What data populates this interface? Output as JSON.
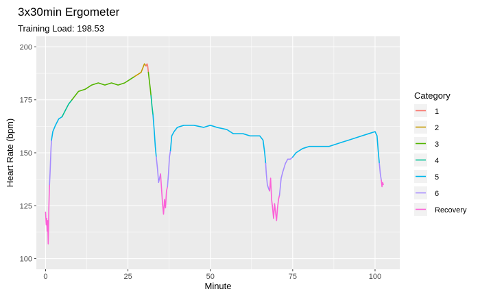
{
  "chart_data": {
    "type": "line",
    "title": "3x30min Ergometer",
    "subtitle": "Training Load: 198.53",
    "xlabel": "Minute",
    "ylabel": "Heart Rate (bpm)",
    "xlim": [
      -2.8,
      107.5
    ],
    "ylim": [
      95,
      205
    ],
    "x_ticks": [
      0,
      25,
      50,
      75,
      100
    ],
    "y_ticks": [
      100,
      125,
      150,
      175,
      200
    ],
    "x_minor": [
      12.5,
      37.5,
      62.5,
      87.5
    ],
    "y_minor": [
      112.5,
      137.5,
      162.5,
      187.5
    ],
    "grid": true,
    "legend": {
      "title": "Category",
      "position": "right",
      "entries": [
        {
          "name": "1",
          "color": "#F8766D"
        },
        {
          "name": "2",
          "color": "#C49A00"
        },
        {
          "name": "3",
          "color": "#53B400"
        },
        {
          "name": "4",
          "color": "#00C094"
        },
        {
          "name": "5",
          "color": "#00B6EB"
        },
        {
          "name": "6",
          "color": "#A58AFF"
        },
        {
          "name": "Recovery",
          "color": "#FB61D7"
        }
      ]
    },
    "series": [
      {
        "name": "Recovery",
        "color": "#FB61D7",
        "points": [
          [
            0,
            122
          ],
          [
            0.2,
            116
          ],
          [
            0.35,
            119
          ],
          [
            0.5,
            113
          ],
          [
            0.65,
            118
          ],
          [
            0.8,
            107
          ],
          [
            0.9,
            114
          ],
          [
            1.0,
            124
          ],
          [
            1.1,
            130
          ],
          [
            1.2,
            135
          ]
        ]
      },
      {
        "name": "6",
        "color": "#A58AFF",
        "points": [
          [
            1.2,
            135
          ],
          [
            1.35,
            140
          ],
          [
            1.5,
            146
          ],
          [
            1.65,
            152
          ],
          [
            1.8,
            156
          ]
        ]
      },
      {
        "name": "5",
        "color": "#00B6EB",
        "points": [
          [
            1.8,
            156
          ],
          [
            2.2,
            160
          ],
          [
            3,
            163
          ],
          [
            4,
            166
          ],
          [
            5,
            167
          ]
        ]
      },
      {
        "name": "4",
        "color": "#00C094",
        "points": [
          [
            5,
            167
          ],
          [
            6,
            170
          ],
          [
            7,
            173
          ],
          [
            8,
            175
          ]
        ]
      },
      {
        "name": "3",
        "color": "#53B400",
        "points": [
          [
            8,
            175
          ],
          [
            9,
            177
          ],
          [
            10,
            179
          ],
          [
            12,
            180
          ],
          [
            14,
            182
          ],
          [
            16,
            183
          ],
          [
            18,
            182
          ],
          [
            20,
            183
          ],
          [
            22,
            182
          ],
          [
            24,
            183
          ],
          [
            25,
            184
          ],
          [
            27,
            186
          ]
        ]
      },
      {
        "name": "2",
        "color": "#C49A00",
        "points": [
          [
            27,
            186
          ],
          [
            28,
            187
          ],
          [
            29,
            188
          ],
          [
            29.5,
            190
          ],
          [
            30,
            192
          ],
          [
            30.5,
            191
          ]
        ]
      },
      {
        "name": "1",
        "color": "#F8766D",
        "points": [
          [
            30.5,
            191
          ],
          [
            30.8,
            192
          ],
          [
            31,
            191
          ],
          [
            31.2,
            188
          ]
        ]
      },
      {
        "name": "3",
        "color": "#53B400",
        "points": [
          [
            31.2,
            188
          ],
          [
            31.5,
            184
          ],
          [
            31.8,
            180
          ],
          [
            32,
            177
          ]
        ]
      },
      {
        "name": "4",
        "color": "#00C094",
        "points": [
          [
            32,
            177
          ],
          [
            32.3,
            172
          ],
          [
            32.6,
            168
          ]
        ]
      },
      {
        "name": "5",
        "color": "#00B6EB",
        "points": [
          [
            32.6,
            168
          ],
          [
            33,
            160
          ],
          [
            33.3,
            153
          ],
          [
            33.6,
            148
          ]
        ]
      },
      {
        "name": "6",
        "color": "#A58AFF",
        "points": [
          [
            33.6,
            148
          ],
          [
            34,
            142
          ],
          [
            34.3,
            136
          ],
          [
            34.6,
            138
          ],
          [
            34.9,
            140
          ]
        ]
      },
      {
        "name": "Recovery",
        "color": "#FB61D7",
        "points": [
          [
            34.9,
            140
          ],
          [
            35.2,
            133
          ],
          [
            35.5,
            126
          ],
          [
            35.8,
            121
          ],
          [
            36.1,
            128
          ],
          [
            36.4,
            124
          ],
          [
            36.7,
            132
          ],
          [
            37,
            134
          ]
        ]
      },
      {
        "name": "6",
        "color": "#A58AFF",
        "points": [
          [
            37,
            134
          ],
          [
            37.3,
            140
          ],
          [
            37.6,
            148
          ],
          [
            37.9,
            151
          ]
        ]
      },
      {
        "name": "5",
        "color": "#00B6EB",
        "points": [
          [
            37.9,
            151
          ],
          [
            38.3,
            158
          ],
          [
            39,
            160
          ],
          [
            40,
            162
          ],
          [
            42,
            163
          ],
          [
            45,
            163
          ],
          [
            48,
            162
          ],
          [
            50,
            163
          ],
          [
            52,
            162
          ],
          [
            55,
            161
          ],
          [
            57,
            159
          ],
          [
            60,
            159
          ],
          [
            62,
            158
          ],
          [
            64,
            158
          ],
          [
            65,
            158
          ],
          [
            66,
            156
          ],
          [
            66.5,
            150
          ],
          [
            66.8,
            145
          ]
        ]
      },
      {
        "name": "6",
        "color": "#A58AFF",
        "points": [
          [
            66.8,
            145
          ],
          [
            67,
            140
          ],
          [
            67.3,
            135
          ],
          [
            67.7,
            133
          ],
          [
            68,
            132
          ]
        ]
      },
      {
        "name": "Recovery",
        "color": "#FB61D7",
        "points": [
          [
            68,
            132
          ],
          [
            68.3,
            138
          ],
          [
            68.6,
            128
          ],
          [
            68.9,
            124
          ],
          [
            69.2,
            119
          ],
          [
            69.5,
            126
          ],
          [
            69.8,
            122
          ],
          [
            70.1,
            118
          ],
          [
            70.4,
            124
          ],
          [
            70.7,
            128
          ],
          [
            71,
            130
          ]
        ]
      },
      {
        "name": "6",
        "color": "#A58AFF",
        "points": [
          [
            71,
            130
          ],
          [
            71.5,
            138
          ],
          [
            72,
            141
          ],
          [
            72.8,
            145
          ],
          [
            73.5,
            147
          ],
          [
            74.3,
            147
          ],
          [
            75,
            148
          ]
        ]
      },
      {
        "name": "5",
        "color": "#00B6EB",
        "points": [
          [
            75,
            148
          ],
          [
            76,
            150
          ],
          [
            78,
            152
          ],
          [
            80,
            153
          ],
          [
            83,
            153
          ],
          [
            86,
            153
          ],
          [
            88,
            154
          ],
          [
            90,
            155
          ],
          [
            92,
            156
          ],
          [
            94,
            157
          ],
          [
            96,
            158
          ],
          [
            98,
            159
          ],
          [
            100,
            160
          ],
          [
            100.6,
            158
          ],
          [
            101,
            150
          ],
          [
            101.3,
            145
          ]
        ]
      },
      {
        "name": "6",
        "color": "#A58AFF",
        "points": [
          [
            101.3,
            145
          ],
          [
            101.6,
            140
          ],
          [
            101.9,
            137
          ]
        ]
      },
      {
        "name": "Recovery",
        "color": "#FB61D7",
        "points": [
          [
            101.9,
            137
          ],
          [
            102.1,
            134
          ],
          [
            102.3,
            136
          ],
          [
            102.5,
            135
          ]
        ]
      }
    ]
  }
}
